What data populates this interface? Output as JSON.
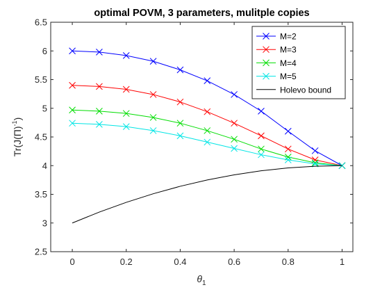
{
  "chart_data": {
    "type": "line",
    "title": "optimal POVM, 3 parameters, mulitple copies",
    "xlabel": {
      "base": "θ",
      "sub": "1"
    },
    "ylabel": {
      "pre": "Tr(J(",
      "mid": "Π",
      "post": ")",
      "sup": "-1",
      "end": ")"
    },
    "xlim": [
      -0.08,
      1.04
    ],
    "ylim": [
      2.5,
      6.5
    ],
    "xticks": [
      0,
      0.2,
      0.4,
      0.6,
      0.8,
      1
    ],
    "xtick_labels": [
      "0",
      "0.2",
      "0.4",
      "0.6",
      "0.8",
      "1"
    ],
    "yticks": [
      2.5,
      3,
      3.5,
      4,
      4.5,
      5,
      5.5,
      6,
      6.5
    ],
    "ytick_labels": [
      "2.5",
      "3",
      "3.5",
      "4",
      "4.5",
      "5",
      "5.5",
      "6",
      "6.5"
    ],
    "grid": false,
    "legend_position": "top-right",
    "x": [
      0,
      0.1,
      0.2,
      0.3,
      0.4,
      0.5,
      0.6,
      0.7,
      0.8,
      0.9,
      1.0
    ],
    "series": [
      {
        "name": "M=2",
        "color": "#0000ff",
        "marker": "x",
        "values": [
          6.0,
          5.98,
          5.92,
          5.82,
          5.67,
          5.48,
          5.24,
          4.95,
          4.6,
          4.26,
          4.0
        ]
      },
      {
        "name": "M=3",
        "color": "#ff0000",
        "marker": "x",
        "values": [
          5.4,
          5.38,
          5.33,
          5.24,
          5.11,
          4.94,
          4.74,
          4.52,
          4.29,
          4.1,
          4.0
        ]
      },
      {
        "name": "M=4",
        "color": "#00dd00",
        "marker": "x",
        "values": [
          4.97,
          4.95,
          4.91,
          4.84,
          4.74,
          4.61,
          4.46,
          4.29,
          4.15,
          4.05,
          4.0
        ]
      },
      {
        "name": "M=5",
        "color": "#00e5e5",
        "marker": "x",
        "values": [
          4.74,
          4.72,
          4.68,
          4.61,
          4.52,
          4.41,
          4.3,
          4.19,
          4.1,
          4.03,
          4.0
        ]
      },
      {
        "name": "Holevo bound",
        "color": "#000000",
        "marker": "none",
        "values": [
          3.0,
          3.19,
          3.36,
          3.51,
          3.64,
          3.75,
          3.84,
          3.91,
          3.96,
          3.99,
          4.0
        ]
      }
    ]
  }
}
